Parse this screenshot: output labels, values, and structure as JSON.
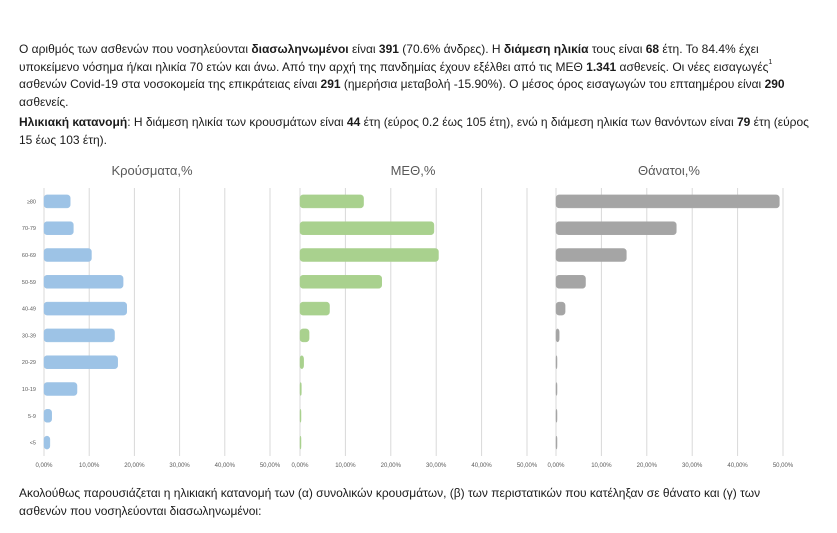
{
  "text": {
    "p1_a": "Ο αριθμός των ασθενών που νοσηλεύονται ",
    "p1_b": "διασωληνωμένοι",
    "p1_c": " είναι ",
    "p1_d": "391",
    "p1_e": " (70.6% άνδρες).  Η ",
    "p1_f": "διάμεση ηλικία",
    "p1_g": " τους είναι ",
    "p1_h": "68",
    "p1_i": " έτη.  Το 84.4% έχει υποκείμενο νόσημα ή/και ηλικία 70 ετών και άνω. Από την αρχή της πανδημίας έχουν εξέλθει από τις ΜΕΘ ",
    "p1_j": "1.341",
    "p1_k": " ασθενείς.  Οι νέες εισαγωγές",
    "p1_sup": "1",
    "p1_l": " ασθενών Covid-19 στα νοσοκομεία της επικράτειας είναι ",
    "p1_m": "291",
    "p1_n": " (ημερήσια μεταβολή -15.90%). Ο μέσος όρος εισαγωγών του επταημέρου είναι ",
    "p1_o": "290",
    "p1_p": " ασθενείς.",
    "p2_a": "Ηλικιακή κατανομή",
    "p2_b": ": Η διάμεση ηλικία των κρουσμάτων είναι ",
    "p2_c": "44",
    "p2_d": " έτη (εύρος 0.2 έως 105 έτη), ενώ η διάμεση ηλικία των θανόντων είναι ",
    "p2_e": "79",
    "p2_f": " έτη (εύρος 15 έως 103 έτη).",
    "p3": "Ακολούθως παρουσιάζεται η ηλικιακή κατανομή των (α) συνολικών κρουσμάτων, (β) των περιστατικών που κατέληξαν σε θάνατο και (γ) των ασθενών που νοσηλεύονται διασωληνωμένοι:"
  },
  "chart_data": [
    {
      "type": "bar",
      "orientation": "horizontal",
      "title": "Κρούσματα,%",
      "categories": [
        "≥80",
        "70-79",
        "60-69",
        "50-59",
        "40-49",
        "30-39",
        "20-29",
        "10-19",
        "5-9",
        "<5"
      ],
      "values": [
        5.8,
        6.5,
        10.5,
        17.5,
        18.3,
        15.6,
        16.3,
        7.3,
        1.7,
        1.3
      ],
      "xlim": [
        0,
        50
      ],
      "ticks": [
        "0,00%",
        "10,00%",
        "20,00%",
        "30,00%",
        "40,00%",
        "50,00%"
      ],
      "grid": true,
      "color": "#9dc3e6"
    },
    {
      "type": "bar",
      "orientation": "horizontal",
      "title": "ΜΕΘ,%",
      "categories": [
        "≥80",
        "70-79",
        "60-69",
        "50-59",
        "40-49",
        "30-39",
        "20-29",
        "10-19",
        "5-9",
        "<5"
      ],
      "values": [
        14.0,
        29.5,
        30.5,
        18.0,
        6.5,
        2.0,
        0.8,
        0.3,
        0.2,
        0.2
      ],
      "xlim": [
        0,
        50
      ],
      "ticks": [
        "0,00%",
        "10,00%",
        "20,00%",
        "30,00%",
        "40,00%",
        "50,00%"
      ],
      "grid": true,
      "color": "#a9d18e"
    },
    {
      "type": "bar",
      "orientation": "horizontal",
      "title": "Θάνατοι,%",
      "categories": [
        "≥80",
        "70-79",
        "60-69",
        "50-59",
        "40-49",
        "30-39",
        "20-29",
        "10-19",
        "5-9",
        "<5"
      ],
      "values": [
        49.2,
        26.5,
        15.5,
        6.5,
        2.0,
        0.7,
        0.2,
        0.1,
        0,
        0
      ],
      "xlim": [
        0,
        50
      ],
      "ticks": [
        "0,00%",
        "10,00%",
        "20,00%",
        "30,00%",
        "40,00%",
        "50,00%"
      ],
      "grid": true,
      "color": "#a5a5a5"
    }
  ]
}
